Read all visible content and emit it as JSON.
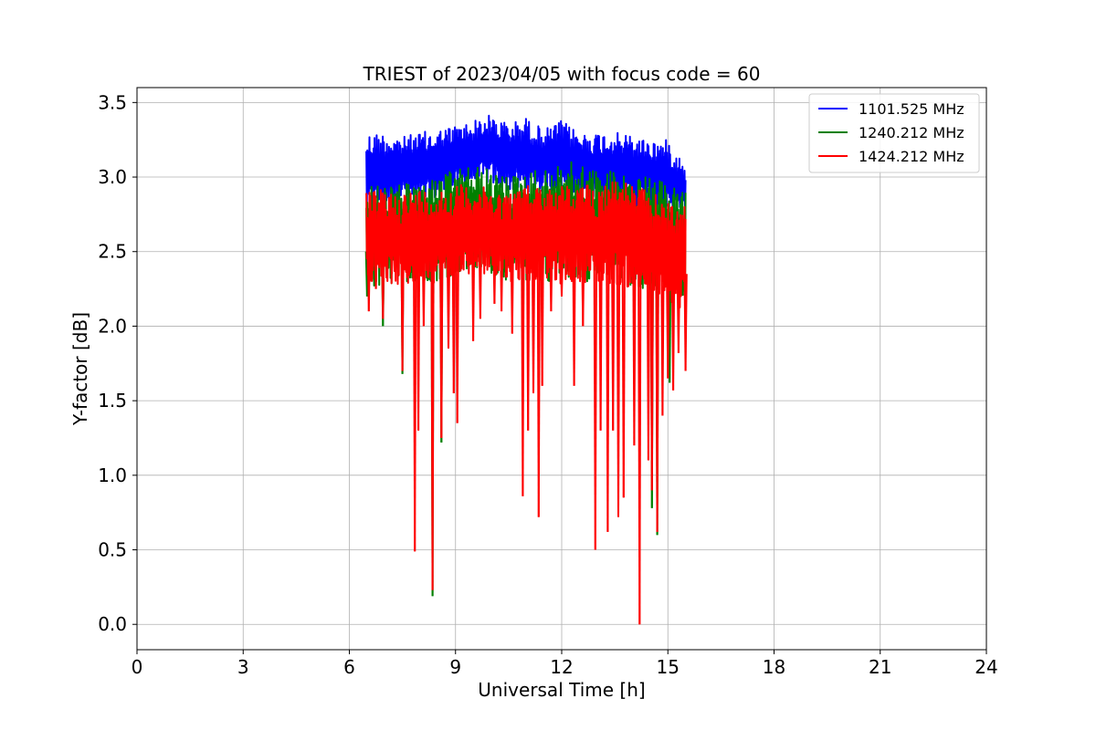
{
  "chart_data": {
    "type": "line",
    "title": "TRIEST of 2023/04/05 with focus code = 60",
    "xlabel": "Universal Time [h]",
    "ylabel": "Y-factor [dB]",
    "xlim": [
      0,
      24
    ],
    "ylim": [
      -0.17,
      3.6
    ],
    "x_ticks": [
      "0",
      "3",
      "6",
      "9",
      "12",
      "15",
      "18",
      "21",
      "24"
    ],
    "y_ticks": [
      "0.0",
      "0.5",
      "1.0",
      "1.5",
      "2.0",
      "2.5",
      "3.0",
      "3.5"
    ],
    "grid": true,
    "legend_position": "top-right",
    "series": [
      {
        "name": "1101.525 MHz",
        "color": "#0000ff",
        "band": {
          "x": [
            6.48,
            7.0,
            7.5,
            8.0,
            8.5,
            9.0,
            9.5,
            10.0,
            10.5,
            11.0,
            11.5,
            12.0,
            12.5,
            13.0,
            13.5,
            14.0,
            14.5,
            15.0,
            15.5
          ],
          "upper": [
            3.3,
            3.3,
            3.27,
            3.3,
            3.32,
            3.35,
            3.38,
            3.42,
            3.36,
            3.4,
            3.32,
            3.38,
            3.3,
            3.3,
            3.3,
            3.28,
            3.25,
            3.25,
            3.1
          ],
          "lower": [
            2.75,
            2.8,
            2.85,
            2.8,
            2.85,
            2.9,
            2.95,
            2.95,
            2.9,
            2.9,
            2.9,
            2.9,
            2.85,
            2.85,
            2.85,
            2.8,
            2.8,
            2.75,
            2.75
          ]
        },
        "dips": []
      },
      {
        "name": "1240.212 MHz",
        "color": "#008000",
        "band": {
          "x": [
            6.48,
            7.0,
            7.5,
            8.0,
            8.5,
            9.0,
            9.5,
            10.0,
            10.5,
            11.0,
            11.5,
            12.0,
            12.5,
            13.0,
            13.5,
            14.0,
            14.5,
            15.0,
            15.5
          ],
          "upper": [
            2.95,
            2.95,
            2.95,
            2.97,
            3.0,
            3.05,
            3.08,
            3.05,
            3.0,
            3.05,
            3.05,
            3.1,
            3.1,
            3.05,
            3.05,
            3.0,
            3.0,
            2.95,
            2.9
          ],
          "lower": [
            2.25,
            2.25,
            2.3,
            2.3,
            2.3,
            2.35,
            2.35,
            2.35,
            2.3,
            2.3,
            2.3,
            2.3,
            2.3,
            2.3,
            2.3,
            2.25,
            2.25,
            2.2,
            2.2
          ]
        },
        "dips": [
          {
            "x": 6.5,
            "y": 2.2
          },
          {
            "x": 6.95,
            "y": 2.0
          },
          {
            "x": 7.5,
            "y": 1.68
          },
          {
            "x": 8.35,
            "y": 0.19
          },
          {
            "x": 8.6,
            "y": 1.22
          },
          {
            "x": 10.9,
            "y": 1.58
          },
          {
            "x": 14.55,
            "y": 0.78
          },
          {
            "x": 14.7,
            "y": 0.6
          },
          {
            "x": 15.05,
            "y": 1.62
          }
        ]
      },
      {
        "name": "1424.212 MHz",
        "color": "#ff0000",
        "band": {
          "x": [
            6.48,
            7.0,
            7.5,
            8.0,
            8.5,
            9.0,
            9.5,
            10.0,
            10.5,
            11.0,
            11.5,
            12.0,
            12.5,
            13.0,
            13.5,
            14.0,
            14.5,
            15.0,
            15.5
          ],
          "upper": [
            2.9,
            2.92,
            2.9,
            2.92,
            2.92,
            2.95,
            2.95,
            2.92,
            2.9,
            2.95,
            2.95,
            2.95,
            2.95,
            2.95,
            3.0,
            2.95,
            2.9,
            2.85,
            2.8
          ],
          "lower": [
            2.3,
            2.3,
            2.25,
            2.3,
            2.28,
            2.3,
            2.35,
            2.35,
            2.3,
            2.3,
            2.3,
            2.28,
            2.3,
            2.28,
            2.28,
            2.25,
            2.2,
            2.1,
            2.1
          ]
        },
        "dips": [
          {
            "x": 6.55,
            "y": 2.1
          },
          {
            "x": 6.75,
            "y": 2.25
          },
          {
            "x": 6.95,
            "y": 2.05
          },
          {
            "x": 7.2,
            "y": 2.35
          },
          {
            "x": 7.5,
            "y": 1.7
          },
          {
            "x": 7.85,
            "y": 0.49
          },
          {
            "x": 7.95,
            "y": 1.3
          },
          {
            "x": 8.1,
            "y": 2.0
          },
          {
            "x": 8.35,
            "y": 0.23
          },
          {
            "x": 8.6,
            "y": 1.25
          },
          {
            "x": 8.8,
            "y": 1.85
          },
          {
            "x": 8.95,
            "y": 1.55
          },
          {
            "x": 9.05,
            "y": 1.35
          },
          {
            "x": 9.5,
            "y": 1.9
          },
          {
            "x": 9.7,
            "y": 2.05
          },
          {
            "x": 10.1,
            "y": 2.15
          },
          {
            "x": 10.3,
            "y": 2.1
          },
          {
            "x": 10.6,
            "y": 1.95
          },
          {
            "x": 10.9,
            "y": 0.86
          },
          {
            "x": 11.05,
            "y": 1.3
          },
          {
            "x": 11.2,
            "y": 1.55
          },
          {
            "x": 11.35,
            "y": 0.72
          },
          {
            "x": 11.45,
            "y": 1.6
          },
          {
            "x": 11.7,
            "y": 2.1
          },
          {
            "x": 12.0,
            "y": 2.2
          },
          {
            "x": 12.35,
            "y": 1.6
          },
          {
            "x": 12.6,
            "y": 2.0
          },
          {
            "x": 12.95,
            "y": 0.5
          },
          {
            "x": 13.1,
            "y": 1.3
          },
          {
            "x": 13.3,
            "y": 0.62
          },
          {
            "x": 13.45,
            "y": 1.3
          },
          {
            "x": 13.6,
            "y": 0.72
          },
          {
            "x": 13.75,
            "y": 0.85
          },
          {
            "x": 14.05,
            "y": 1.2
          },
          {
            "x": 14.2,
            "y": 0.0
          },
          {
            "x": 14.45,
            "y": 1.1
          },
          {
            "x": 14.55,
            "y": 0.9
          },
          {
            "x": 14.7,
            "y": 0.62
          },
          {
            "x": 14.85,
            "y": 1.4
          },
          {
            "x": 15.0,
            "y": 1.65
          },
          {
            "x": 15.15,
            "y": 1.57
          },
          {
            "x": 15.3,
            "y": 1.82
          },
          {
            "x": 15.5,
            "y": 1.7
          }
        ]
      }
    ]
  }
}
